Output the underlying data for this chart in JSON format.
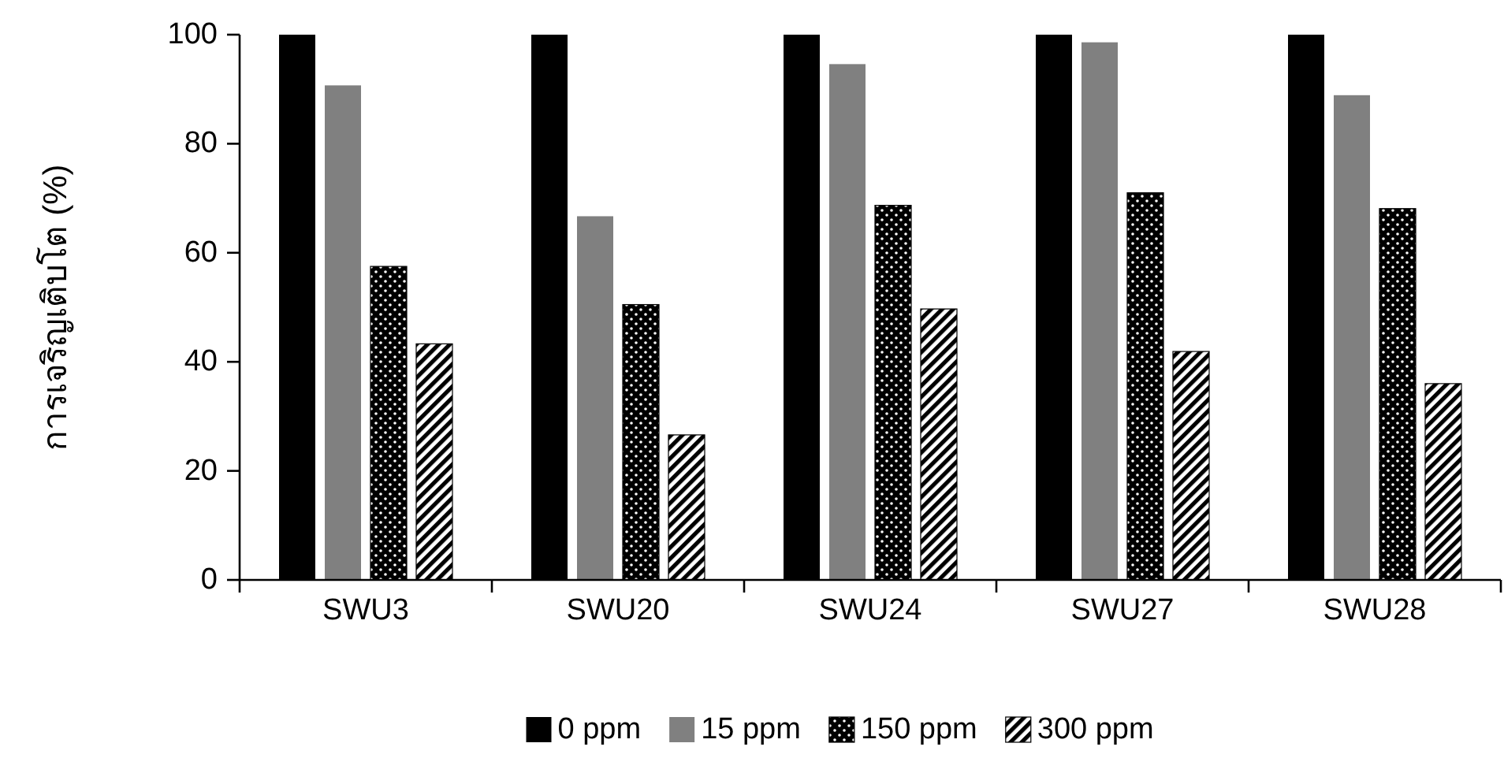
{
  "chart_data": {
    "type": "bar",
    "ylabel": "การเจริญเติบโต (%)",
    "categories": [
      "SWU3",
      "SWU20",
      "SWU24",
      "SWU27",
      "SWU28"
    ],
    "series": [
      {
        "name": "0 ppm",
        "color": "#000000",
        "values": [
          100,
          100,
          100,
          100,
          100
        ]
      },
      {
        "name": "15 ppm",
        "color": "#808080",
        "values": [
          90.7,
          66.7,
          94.6,
          98.6,
          88.9
        ]
      },
      {
        "name": "150 ppm",
        "color": "#000000",
        "values": [
          57.5,
          50.5,
          68.7,
          71.0,
          68.1
        ]
      },
      {
        "name": "300 ppm",
        "color": "#000000",
        "values": [
          43.3,
          26.6,
          49.7,
          41.9,
          36.0
        ]
      }
    ],
    "ylim": [
      0,
      100
    ],
    "yticks": [
      0,
      20,
      40,
      60,
      80,
      100
    ],
    "grid": false,
    "legend": "bottom"
  }
}
